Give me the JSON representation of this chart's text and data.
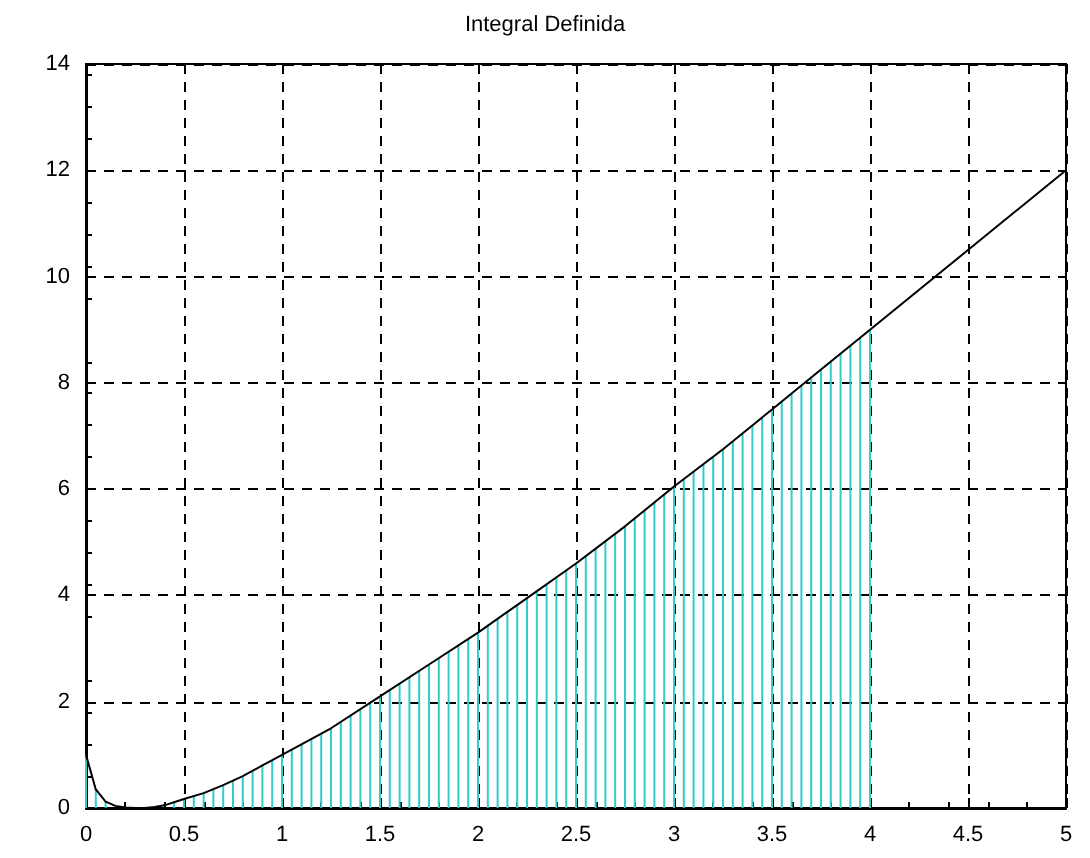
{
  "chart_data": {
    "type": "line",
    "title": "Integral Definida",
    "xlim": [
      0,
      5
    ],
    "xticks": [
      0,
      0.5,
      1,
      1.5,
      2,
      2.5,
      3,
      3.5,
      4,
      4.5,
      5
    ],
    "ylim": [
      0,
      14
    ],
    "yticks": [
      0,
      2,
      4,
      6,
      8,
      10,
      12,
      14
    ],
    "grid": true,
    "marker": "none",
    "line_style": "solid",
    "series": [
      {
        "type": "bar",
        "color": "#33cccc",
        "x": [
          0,
          0.05,
          0.1,
          0.15,
          0.2,
          0.25,
          0.3,
          0.35,
          0.4,
          0.45,
          0.5,
          0.55,
          0.6,
          0.65,
          0.7,
          0.75,
          0.8,
          0.85,
          0.9,
          0.95,
          1,
          1.05,
          1.1,
          1.15,
          1.2,
          1.25,
          1.3,
          1.35,
          1.4,
          1.45,
          1.5,
          1.55,
          1.6,
          1.65,
          1.7,
          1.75,
          1.8,
          1.85,
          1.9,
          1.95,
          2,
          2.05,
          2.1,
          2.15,
          2.2,
          2.25,
          2.3,
          2.35,
          2.4,
          2.45,
          2.5,
          2.55,
          2.6,
          2.65,
          2.7,
          2.75,
          2.8,
          2.85,
          2.9,
          2.95,
          3,
          3.05,
          3.1,
          3.15,
          3.2,
          3.25,
          3.3,
          3.35,
          3.4,
          3.45,
          3.5,
          3.55,
          3.6,
          3.65,
          3.7,
          3.75,
          3.8,
          3.85,
          3.9,
          3.95,
          4
        ],
        "values": [
          1.0,
          0.35,
          0.12,
          null,
          null,
          0,
          0,
          null,
          null,
          0.1,
          0.17,
          0.22,
          0.28,
          0.35,
          0.43,
          0.52,
          0.6,
          0.7,
          0.8,
          0.9,
          1.0,
          1.1,
          1.2,
          1.3,
          1.4,
          1.5,
          1.62,
          1.74,
          1.86,
          1.98,
          2.1,
          2.22,
          2.34,
          2.46,
          2.58,
          2.7,
          2.82,
          2.94,
          3.06,
          3.18,
          3.3,
          3.43,
          3.56,
          3.69,
          3.82,
          3.95,
          4.08,
          4.21,
          4.34,
          4.47,
          4.6,
          4.74,
          4.88,
          5.02,
          5.16,
          5.3,
          5.45,
          5.6,
          5.75,
          5.9,
          6.05,
          6.19,
          6.33,
          6.47,
          6.61,
          6.75,
          6.9,
          7.05,
          7.2,
          7.35,
          7.5,
          7.65,
          7.8,
          7.95,
          8.1,
          8.25,
          8.4,
          8.55,
          8.7,
          8.85,
          9.0
        ]
      },
      {
        "color": "#000000",
        "x": [
          0,
          0.05,
          0.1,
          0.15,
          0.2,
          0.25,
          0.3,
          0.35,
          0.4,
          0.5,
          0.6,
          0.7,
          0.8,
          0.9,
          1,
          1.25,
          1.5,
          1.75,
          2,
          2.25,
          2.5,
          2.75,
          3,
          3.25,
          3.5,
          3.75,
          4,
          4.5,
          5
        ],
        "values": [
          1.0,
          0.35,
          0.12,
          0.04,
          0.01,
          0,
          0,
          0.02,
          0.05,
          0.17,
          0.28,
          0.43,
          0.6,
          0.8,
          1.0,
          1.5,
          2.1,
          2.7,
          3.3,
          3.95,
          4.6,
          5.3,
          6.05,
          6.75,
          7.5,
          8.25,
          9.0,
          10.5,
          12
        ]
      }
    ]
  }
}
